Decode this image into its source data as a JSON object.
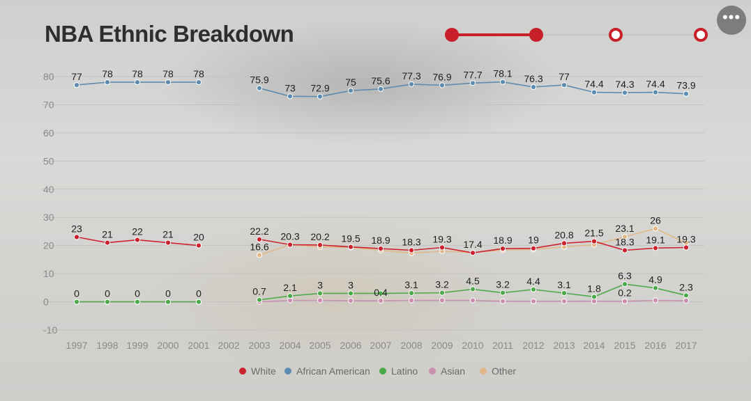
{
  "title": "NBA Ethnic Breakdown",
  "menu_icon": "more-horizontal-icon",
  "stepper": {
    "steps": 4,
    "active_steps": 2,
    "colors": {
      "active": "#c8202a",
      "inactive": "#c4c4c4"
    }
  },
  "chart_data": {
    "type": "line",
    "title": "NBA Ethnic Breakdown",
    "xlabel": "",
    "ylabel": "",
    "ylim": [
      -10,
      80
    ],
    "yticks": [
      80,
      70,
      60,
      50,
      40,
      30,
      20,
      10,
      0,
      -10
    ],
    "categories": [
      "1997",
      "1998",
      "1999",
      "2000",
      "2001",
      "2002",
      "2003",
      "2004",
      "2005",
      "2006",
      "2007",
      "2008",
      "2009",
      "2010",
      "2011",
      "2012",
      "2013",
      "2014",
      "2015",
      "2016",
      "2017"
    ],
    "series": [
      {
        "name": "White",
        "color": "#cc2230",
        "values": [
          23,
          21,
          22,
          21,
          20,
          null,
          22.2,
          20.3,
          20.2,
          19.5,
          18.9,
          18.3,
          19.3,
          17.4,
          18.9,
          19,
          20.8,
          21.5,
          18.3,
          19.1,
          19.3
        ],
        "labels": [
          "23",
          "21",
          "22",
          "21",
          "20",
          "",
          "22.2",
          "20.3",
          "20.2",
          "19.5",
          "18.9",
          "18.3",
          "19.3",
          "17.4",
          "18.9",
          "19",
          "20.8",
          "21.5",
          "18.3",
          "19.1",
          "19.3"
        ]
      },
      {
        "name": "African American",
        "color": "#5e8bb0",
        "values": [
          77,
          78,
          78,
          78,
          78,
          null,
          75.9,
          73,
          72.9,
          75,
          75.6,
          77.3,
          76.9,
          77.7,
          78.1,
          76.3,
          77,
          74.4,
          74.3,
          74.4,
          73.9
        ],
        "labels": [
          "77",
          "78",
          "78",
          "78",
          "78",
          "",
          "75.9",
          "73",
          "72.9",
          "75",
          "75.6",
          "77.3",
          "76.9",
          "77.7",
          "78.1",
          "76.3",
          "77",
          "74.4",
          "74.3",
          "74.4",
          "73.9"
        ]
      },
      {
        "name": "Latino",
        "color": "#4daa4a",
        "values": [
          0,
          0,
          0,
          0,
          0,
          null,
          0.7,
          2.1,
          3,
          3,
          3,
          3.1,
          3.2,
          4.5,
          3.2,
          4.4,
          3.1,
          1.8,
          6.3,
          4.9,
          2.3
        ],
        "labels": [
          "0",
          "0",
          "0",
          "0",
          "0",
          "",
          "0.7",
          "2.1",
          "3",
          "3",
          "",
          "3.1",
          "3.2",
          "4.5",
          "3.2",
          "4.4",
          "3.1",
          "1.8",
          "6.3",
          "4.9",
          "2.3"
        ]
      },
      {
        "name": "Asian",
        "color": "#c98eb0",
        "values": [
          0,
          0,
          0,
          0,
          0,
          null,
          0,
          0.5,
          0.5,
          0.4,
          0.4,
          0.5,
          0.5,
          0.5,
          0.2,
          0.2,
          0.2,
          0.2,
          0.2,
          0.5,
          0.4
        ],
        "labels": [
          "",
          "",
          "",
          "",
          "",
          "",
          "",
          "",
          "",
          "",
          "0.4",
          "",
          "",
          "",
          "",
          "",
          "",
          "",
          "0.2",
          "",
          ""
        ]
      },
      {
        "name": "Other",
        "color": "#e0b888",
        "values": [
          0,
          0,
          0,
          0,
          0,
          null,
          16.6,
          20.3,
          19.5,
          19.3,
          18.3,
          17.3,
          18,
          17.5,
          18.4,
          18.6,
          19.5,
          20.3,
          23.1,
          26,
          20.9
        ],
        "labels": [
          "",
          "",
          "",
          "",
          "",
          "",
          "16.6",
          "",
          "",
          "",
          "",
          "",
          "",
          "",
          "",
          "",
          "",
          "",
          "23.1",
          "26",
          ""
        ]
      }
    ],
    "legend": {
      "position": "bottom-center",
      "entries": [
        "White",
        "African American",
        "Latino",
        "Asian",
        "Other"
      ]
    },
    "grid": true
  }
}
